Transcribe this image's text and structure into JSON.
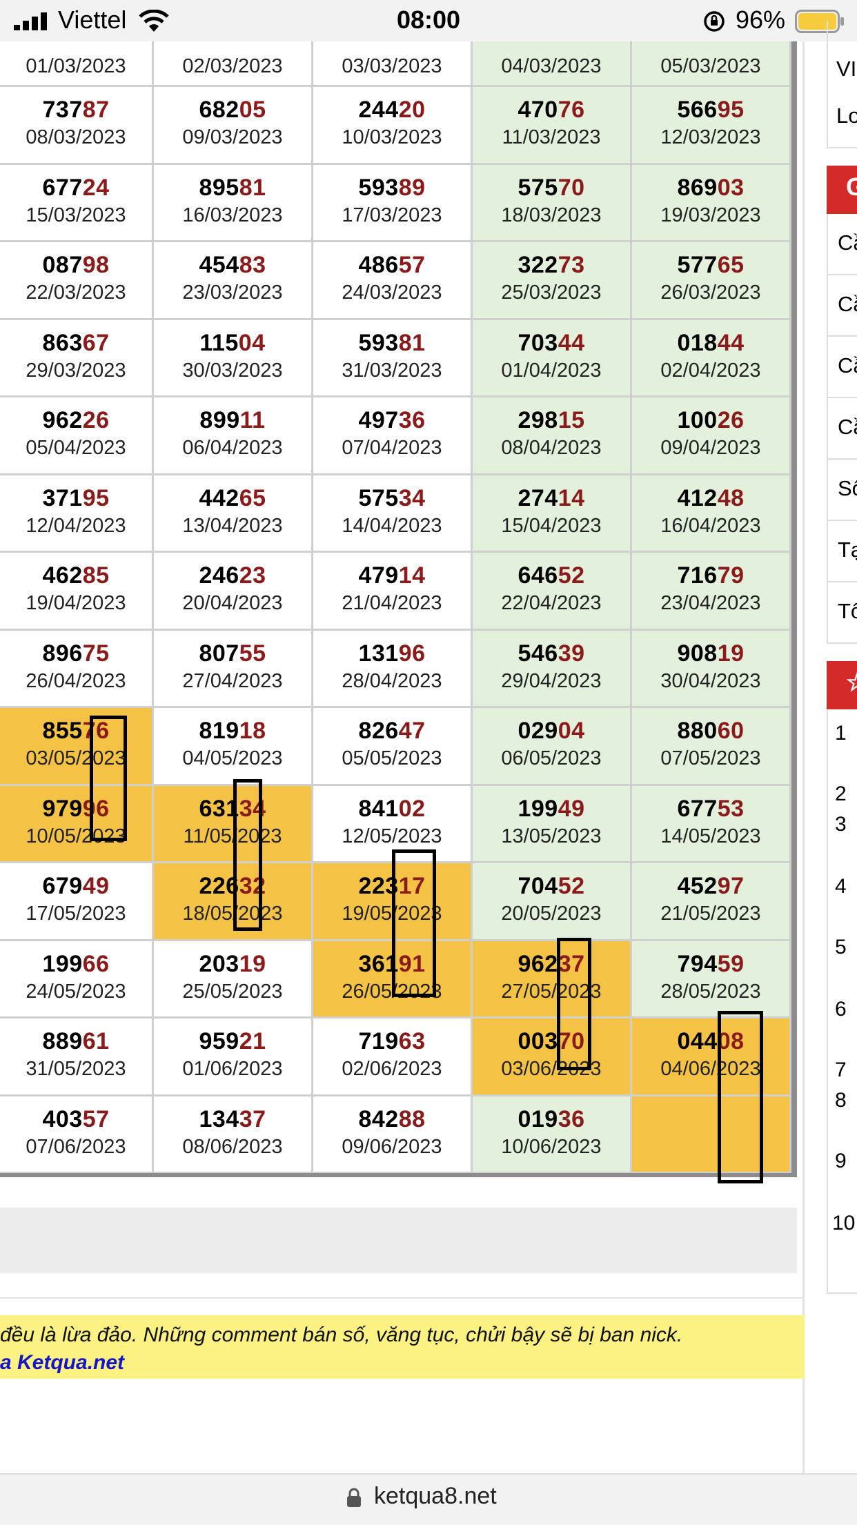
{
  "status_bar": {
    "carrier": "Viettel",
    "time": "08:00",
    "battery_pct": "96%",
    "colors": {
      "battery": "#f6cc3c"
    }
  },
  "table": {
    "highlight_color": "#f4c245",
    "weekend_color": "#e3f0dc",
    "tail_color": "#8b1a1a",
    "first_row": [
      {
        "date": "01/03/2023",
        "style": "normal"
      },
      {
        "date": "02/03/2023",
        "style": "normal"
      },
      {
        "date": "03/03/2023",
        "style": "normal"
      },
      {
        "date": "04/03/2023",
        "style": "weekend"
      },
      {
        "date": "05/03/2023",
        "style": "weekend"
      }
    ],
    "rows": [
      [
        {
          "head": "737",
          "tail": "87",
          "date": "08/03/2023",
          "style": "normal"
        },
        {
          "head": "682",
          "tail": "05",
          "date": "09/03/2023",
          "style": "normal"
        },
        {
          "head": "244",
          "tail": "20",
          "date": "10/03/2023",
          "style": "normal"
        },
        {
          "head": "470",
          "tail": "76",
          "date": "11/03/2023",
          "style": "weekend"
        },
        {
          "head": "566",
          "tail": "95",
          "date": "12/03/2023",
          "style": "weekend"
        }
      ],
      [
        {
          "head": "677",
          "tail": "24",
          "date": "15/03/2023",
          "style": "normal"
        },
        {
          "head": "895",
          "tail": "81",
          "date": "16/03/2023",
          "style": "normal"
        },
        {
          "head": "593",
          "tail": "89",
          "date": "17/03/2023",
          "style": "normal"
        },
        {
          "head": "575",
          "tail": "70",
          "date": "18/03/2023",
          "style": "weekend"
        },
        {
          "head": "869",
          "tail": "03",
          "date": "19/03/2023",
          "style": "weekend"
        }
      ],
      [
        {
          "head": "087",
          "tail": "98",
          "date": "22/03/2023",
          "style": "normal"
        },
        {
          "head": "454",
          "tail": "83",
          "date": "23/03/2023",
          "style": "normal"
        },
        {
          "head": "486",
          "tail": "57",
          "date": "24/03/2023",
          "style": "normal"
        },
        {
          "head": "322",
          "tail": "73",
          "date": "25/03/2023",
          "style": "weekend"
        },
        {
          "head": "577",
          "tail": "65",
          "date": "26/03/2023",
          "style": "weekend"
        }
      ],
      [
        {
          "head": "863",
          "tail": "67",
          "date": "29/03/2023",
          "style": "normal"
        },
        {
          "head": "115",
          "tail": "04",
          "date": "30/03/2023",
          "style": "normal"
        },
        {
          "head": "593",
          "tail": "81",
          "date": "31/03/2023",
          "style": "normal"
        },
        {
          "head": "703",
          "tail": "44",
          "date": "01/04/2023",
          "style": "weekend"
        },
        {
          "head": "018",
          "tail": "44",
          "date": "02/04/2023",
          "style": "weekend"
        }
      ],
      [
        {
          "head": "962",
          "tail": "26",
          "date": "05/04/2023",
          "style": "normal"
        },
        {
          "head": "899",
          "tail": "11",
          "date": "06/04/2023",
          "style": "normal"
        },
        {
          "head": "497",
          "tail": "36",
          "date": "07/04/2023",
          "style": "normal"
        },
        {
          "head": "298",
          "tail": "15",
          "date": "08/04/2023",
          "style": "weekend"
        },
        {
          "head": "100",
          "tail": "26",
          "date": "09/04/2023",
          "style": "weekend"
        }
      ],
      [
        {
          "head": "371",
          "tail": "95",
          "date": "12/04/2023",
          "style": "normal"
        },
        {
          "head": "442",
          "tail": "65",
          "date": "13/04/2023",
          "style": "normal"
        },
        {
          "head": "575",
          "tail": "34",
          "date": "14/04/2023",
          "style": "normal"
        },
        {
          "head": "274",
          "tail": "14",
          "date": "15/04/2023",
          "style": "weekend"
        },
        {
          "head": "412",
          "tail": "48",
          "date": "16/04/2023",
          "style": "weekend"
        }
      ],
      [
        {
          "head": "462",
          "tail": "85",
          "date": "19/04/2023",
          "style": "normal"
        },
        {
          "head": "246",
          "tail": "23",
          "date": "20/04/2023",
          "style": "normal"
        },
        {
          "head": "479",
          "tail": "14",
          "date": "21/04/2023",
          "style": "normal"
        },
        {
          "head": "646",
          "tail": "52",
          "date": "22/04/2023",
          "style": "weekend"
        },
        {
          "head": "716",
          "tail": "79",
          "date": "23/04/2023",
          "style": "weekend"
        }
      ],
      [
        {
          "head": "896",
          "tail": "75",
          "date": "26/04/2023",
          "style": "normal"
        },
        {
          "head": "807",
          "tail": "55",
          "date": "27/04/2023",
          "style": "normal"
        },
        {
          "head": "131",
          "tail": "96",
          "date": "28/04/2023",
          "style": "normal"
        },
        {
          "head": "546",
          "tail": "39",
          "date": "29/04/2023",
          "style": "weekend"
        },
        {
          "head": "908",
          "tail": "19",
          "date": "30/04/2023",
          "style": "weekend"
        }
      ],
      [
        {
          "head": "855",
          "tail": "76",
          "date": "03/05/2023",
          "style": "hl"
        },
        {
          "head": "819",
          "tail": "18",
          "date": "04/05/2023",
          "style": "normal"
        },
        {
          "head": "826",
          "tail": "47",
          "date": "05/05/2023",
          "style": "normal"
        },
        {
          "head": "029",
          "tail": "04",
          "date": "06/05/2023",
          "style": "weekend"
        },
        {
          "head": "880",
          "tail": "60",
          "date": "07/05/2023",
          "style": "weekend"
        }
      ],
      [
        {
          "head": "979",
          "tail": "96",
          "date": "10/05/2023",
          "style": "hl"
        },
        {
          "head": "631",
          "tail": "34",
          "date": "11/05/2023",
          "style": "hl"
        },
        {
          "head": "841",
          "tail": "02",
          "date": "12/05/2023",
          "style": "normal"
        },
        {
          "head": "199",
          "tail": "49",
          "date": "13/05/2023",
          "style": "weekend"
        },
        {
          "head": "677",
          "tail": "53",
          "date": "14/05/2023",
          "style": "weekend"
        }
      ],
      [
        {
          "head": "679",
          "tail": "49",
          "date": "17/05/2023",
          "style": "normal"
        },
        {
          "head": "226",
          "tail": "32",
          "date": "18/05/2023",
          "style": "hl"
        },
        {
          "head": "223",
          "tail": "17",
          "date": "19/05/2023",
          "style": "hl"
        },
        {
          "head": "704",
          "tail": "52",
          "date": "20/05/2023",
          "style": "weekend"
        },
        {
          "head": "452",
          "tail": "97",
          "date": "21/05/2023",
          "style": "weekend"
        }
      ],
      [
        {
          "head": "199",
          "tail": "66",
          "date": "24/05/2023",
          "style": "normal"
        },
        {
          "head": "203",
          "tail": "19",
          "date": "25/05/2023",
          "style": "normal"
        },
        {
          "head": "361",
          "tail": "91",
          "date": "26/05/2023",
          "style": "hl"
        },
        {
          "head": "962",
          "tail": "37",
          "date": "27/05/2023",
          "style": "hl"
        },
        {
          "head": "794",
          "tail": "59",
          "date": "28/05/2023",
          "style": "weekend"
        }
      ],
      [
        {
          "head": "889",
          "tail": "61",
          "date": "31/05/2023",
          "style": "normal"
        },
        {
          "head": "959",
          "tail": "21",
          "date": "01/06/2023",
          "style": "normal"
        },
        {
          "head": "719",
          "tail": "63",
          "date": "02/06/2023",
          "style": "normal"
        },
        {
          "head": "003",
          "tail": "70",
          "date": "03/06/2023",
          "style": "hl"
        },
        {
          "head": "044",
          "tail": "08",
          "date": "04/06/2023",
          "style": "hl"
        }
      ],
      [
        {
          "head": "403",
          "tail": "57",
          "date": "07/06/2023",
          "style": "normal"
        },
        {
          "head": "134",
          "tail": "37",
          "date": "08/06/2023",
          "style": "normal"
        },
        {
          "head": "842",
          "tail": "88",
          "date": "09/06/2023",
          "style": "normal"
        },
        {
          "head": "019",
          "tail": "36",
          "date": "10/06/2023",
          "style": "weekend"
        },
        {
          "head": "",
          "tail": "",
          "date": "",
          "style": "hl"
        }
      ]
    ]
  },
  "notice": {
    "line1": "đều là lừa đảo. Những comment bán số, văng tục, chửi bậy sẽ bị ban nick.",
    "line2": "a Ketqua.net"
  },
  "sidebar": {
    "box1": [
      "VII",
      "Lo"
    ],
    "section1_glyph": "G",
    "menu": [
      "Cầ",
      "Cầ",
      "Cầ",
      "Cầ",
      "Sô",
      "Tạ",
      "Tô"
    ],
    "section2_glyph": "☆",
    "list_numbers": [
      "1",
      "2",
      "3",
      "4",
      "5",
      "6",
      "7",
      "8",
      "9",
      "10"
    ]
  },
  "url_bar": {
    "url": "ketqua8.net"
  }
}
